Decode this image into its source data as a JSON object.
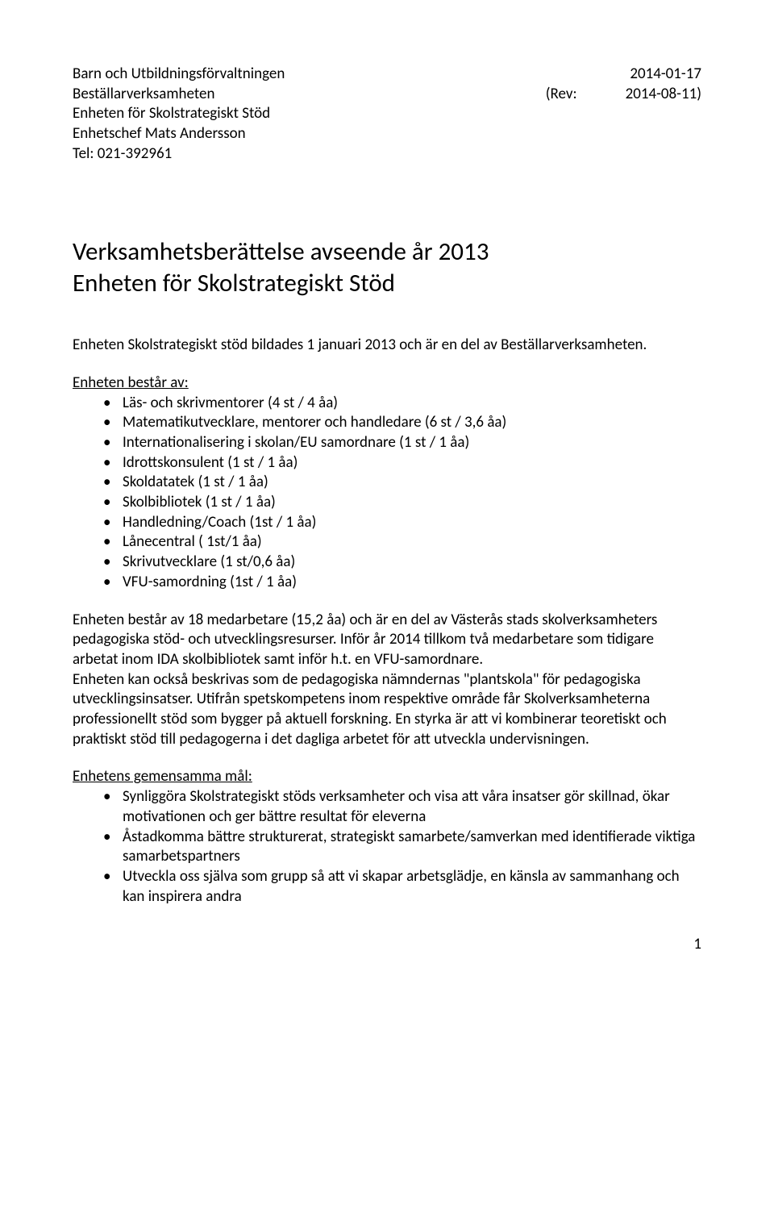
{
  "header": {
    "org": "Barn och Utbildningsförvaltningen",
    "dept": "Beställarverksamheten",
    "unit": "Enheten för Skolstrategiskt Stöd",
    "chief": "Enhetschef Mats Andersson",
    "tel": "Tel: 021-392961",
    "date": "2014-01-17",
    "rev_label": "(Rev:",
    "rev_date": "2014-08-11)"
  },
  "title_line1": "Verksamhetsberättelse avseende år 2013",
  "title_line2": "Enheten för Skolstrategiskt Stöd",
  "intro": "Enheten Skolstrategiskt stöd bildades 1 januari 2013 och är en del av Beställarverksamheten.",
  "section1_head": "Enheten består av:",
  "list1": [
    "Läs- och skrivmentorer (4 st / 4 åa)",
    "Matematikutvecklare, mentorer och handledare (6 st / 3,6 åa)",
    "Internationalisering i skolan/EU samordnare (1 st / 1 åa)",
    "Idrottskonsulent (1 st / 1 åa)",
    "Skoldatatek (1 st / 1 åa)",
    "Skolbibliotek (1 st / 1 åa)",
    "Handledning/Coach (1st / 1 åa)",
    "Lånecentral ( 1st/1 åa)",
    "Skrivutvecklare (1 st/0,6 åa)",
    "VFU-samordning (1st / 1 åa)"
  ],
  "para1": "Enheten består av 18 medarbetare (15,2 åa) och är en del av Västerås stads skolverksamheters pedagogiska stöd- och utvecklingsresurser. Inför år 2014 tillkom två medarbetare som tidigare arbetat inom IDA skolbibliotek samt inför h.t. en VFU-samordnare.",
  "para2": "Enheten kan också beskrivas som de pedagogiska nämndernas \"plantskola\" för pedagogiska utvecklingsinsatser. Utifrån spetskompetens inom respektive område får Skolverksamheterna professionellt stöd som bygger på aktuell forskning. En styrka är att vi kombinerar teoretiskt och praktiskt stöd till pedagogerna i det dagliga arbetet för att utveckla undervisningen.",
  "section2_head": "Enhetens gemensamma mål:",
  "list2": [
    "Synliggöra Skolstrategiskt stöds verksamheter och visa att våra insatser gör skillnad, ökar motivationen och ger bättre resultat för eleverna",
    "Åstadkomma bättre strukturerat, strategiskt samarbete/samverkan med identifierade viktiga samarbetspartners",
    "Utveckla oss själva som grupp så att vi skapar arbetsglädje, en känsla av sammanhang och kan inspirera andra"
  ],
  "page_num": "1"
}
